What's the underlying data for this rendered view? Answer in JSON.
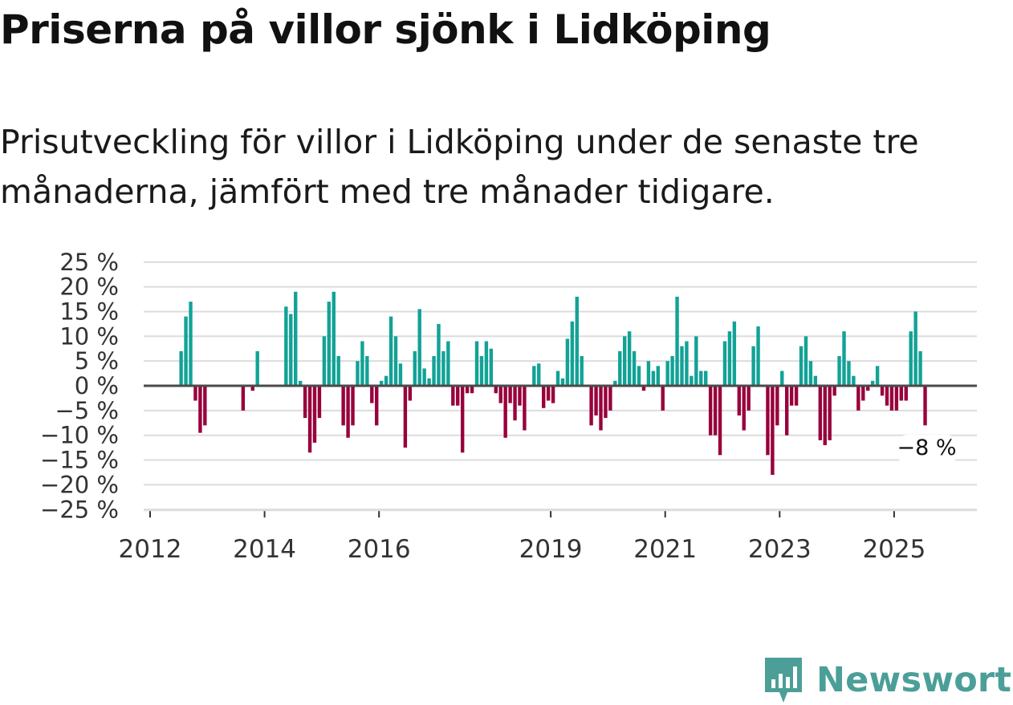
{
  "header": {
    "title": "Priserna på villor sjönk i Lidköping",
    "subtitle": "Prisutveckling för villor i Lidköping under de senaste tre månaderna, jämfört med tre månader tidigare."
  },
  "brand": {
    "name": "Newsworthy",
    "color": "#4b9f98"
  },
  "colors": {
    "positive": "#12a296",
    "negative": "#98003c",
    "baseline": "#4a4a4a",
    "grid": "#dcdcdc"
  },
  "chart_data": {
    "type": "bar",
    "title": "Priserna på villor sjönk i Lidköping",
    "xlabel": "",
    "ylabel": "",
    "ylim": [
      -25,
      25
    ],
    "grid": true,
    "y_ticks": [
      {
        "value": 25,
        "label": "25 %"
      },
      {
        "value": 20,
        "label": "20 %"
      },
      {
        "value": 15,
        "label": "15 %"
      },
      {
        "value": 10,
        "label": "10 %"
      },
      {
        "value": 5,
        "label": "5 %"
      },
      {
        "value": 0,
        "label": "0 %"
      },
      {
        "value": -5,
        "label": "−5 %"
      },
      {
        "value": -10,
        "label": "−10 %"
      },
      {
        "value": -15,
        "label": "−15 %"
      },
      {
        "value": -20,
        "label": "−20 %"
      },
      {
        "value": -25,
        "label": "−25 %"
      }
    ],
    "x_ticks": [
      {
        "year": 2012,
        "label": "2012"
      },
      {
        "year": 2014,
        "label": "2014"
      },
      {
        "year": 2016,
        "label": "2016"
      },
      {
        "year": 2019,
        "label": "2019"
      },
      {
        "year": 2021,
        "label": "2021"
      },
      {
        "year": 2023,
        "label": "2023"
      },
      {
        "year": 2025,
        "label": "2025"
      }
    ],
    "x_range": [
      2012,
      2026.4
    ],
    "series": [
      {
        "name": "Prisutveckling",
        "start_year": 2012,
        "start_month": 1,
        "values": [
          null,
          null,
          null,
          null,
          null,
          null,
          7,
          14,
          17,
          -3,
          -9.5,
          -8,
          null,
          null,
          null,
          null,
          null,
          null,
          null,
          -5,
          null,
          -1,
          7,
          null,
          null,
          null,
          null,
          null,
          16,
          14.5,
          19,
          1,
          -6.5,
          -13.5,
          -11.5,
          -6.5,
          10,
          17,
          19,
          6,
          -8,
          -10.5,
          -8,
          5,
          9,
          6,
          -3.5,
          -8,
          1,
          2,
          14,
          10,
          4.5,
          -12.5,
          -3,
          7,
          15.5,
          3.5,
          1.5,
          6,
          12.5,
          7,
          9,
          -4,
          -4,
          -13.5,
          -1.5,
          -1.5,
          9,
          6,
          9,
          7.5,
          -1.5,
          -3.5,
          -10.5,
          -3.5,
          -7,
          -4,
          -9,
          null,
          4,
          4.5,
          -4.5,
          -3,
          -3.5,
          3,
          1.5,
          9.5,
          13,
          18,
          6,
          null,
          -8,
          -6,
          -9,
          -6.5,
          -5,
          1,
          7,
          10,
          11,
          7,
          4,
          -1,
          5,
          3,
          4,
          -5,
          5,
          6,
          18,
          8,
          9,
          2,
          10,
          3,
          3,
          -10,
          -10,
          -14,
          9,
          11,
          13,
          -6,
          -9,
          -5,
          8,
          12,
          null,
          -14,
          -18,
          -8,
          3,
          -10,
          -4,
          -4,
          8,
          10,
          5,
          2,
          -11,
          -12,
          -11,
          -2,
          6,
          11,
          5,
          2,
          -5,
          -3,
          -1,
          1,
          4,
          -2,
          -4,
          -5,
          -5,
          -3,
          -3,
          11,
          15,
          7,
          -8
        ]
      }
    ],
    "annotation": {
      "label": "−8 %",
      "value": -8,
      "year": 2025,
      "month": 7
    }
  }
}
